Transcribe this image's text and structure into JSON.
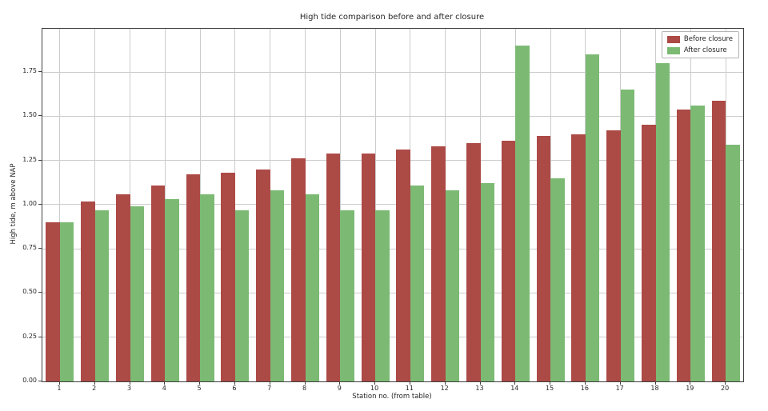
{
  "chart_data": {
    "type": "bar",
    "title": "High tide comparison before and after closure",
    "xlabel": "Station no. (from table)",
    "ylabel": "High tide, m above NAP",
    "categories": [
      "1",
      "2",
      "3",
      "4",
      "5",
      "6",
      "7",
      "8",
      "9",
      "10",
      "11",
      "12",
      "13",
      "14",
      "15",
      "16",
      "17",
      "18",
      "19",
      "20"
    ],
    "series": [
      {
        "name": "Before closure",
        "color": "#ac4a46",
        "values": [
          0.9,
          1.02,
          1.06,
          1.11,
          1.17,
          1.18,
          1.2,
          1.26,
          1.29,
          1.29,
          1.31,
          1.33,
          1.35,
          1.36,
          1.39,
          1.4,
          1.42,
          1.45,
          1.54,
          1.59
        ]
      },
      {
        "name": "After closure",
        "color": "#7cba74",
        "values": [
          0.9,
          0.97,
          0.99,
          1.03,
          1.06,
          0.97,
          1.08,
          1.06,
          0.97,
          0.97,
          1.11,
          1.08,
          1.12,
          1.9,
          1.15,
          1.85,
          1.65,
          1.8,
          1.56,
          1.34
        ]
      }
    ],
    "ylim": [
      0,
      1.995
    ],
    "ytick_step": 0.25,
    "ytick_labels": [
      "0.00",
      "0.25",
      "0.50",
      "0.75",
      "1.00",
      "1.25",
      "1.50",
      "1.75"
    ],
    "grid": true,
    "legend_position": "upper right"
  }
}
